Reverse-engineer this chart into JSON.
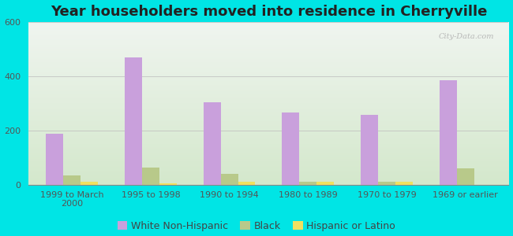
{
  "title": "Year householders moved into residence in Cherryville",
  "background_color": "#00e5e5",
  "plot_bg_top": "#f0f5f0",
  "plot_bg_bottom": "#d4e8cc",
  "categories": [
    "1999 to March\n2000",
    "1995 to 1998",
    "1990 to 1994",
    "1980 to 1989",
    "1970 to 1979",
    "1969 or earlier"
  ],
  "series": {
    "White Non-Hispanic": {
      "values": [
        190,
        468,
        305,
        268,
        258,
        385
      ],
      "color": "#c9a0dc"
    },
    "Black": {
      "values": [
        35,
        65,
        42,
        12,
        12,
        60
      ],
      "color": "#b8c98a"
    },
    "Hispanic or Latino": {
      "values": [
        12,
        5,
        12,
        12,
        12,
        0
      ],
      "color": "#f0e060"
    }
  },
  "ylim": [
    0,
    600
  ],
  "yticks": [
    0,
    200,
    400,
    600
  ],
  "bar_width": 0.22,
  "title_fontsize": 13,
  "tick_fontsize": 8,
  "legend_fontsize": 9,
  "watermark": "City-Data.com"
}
